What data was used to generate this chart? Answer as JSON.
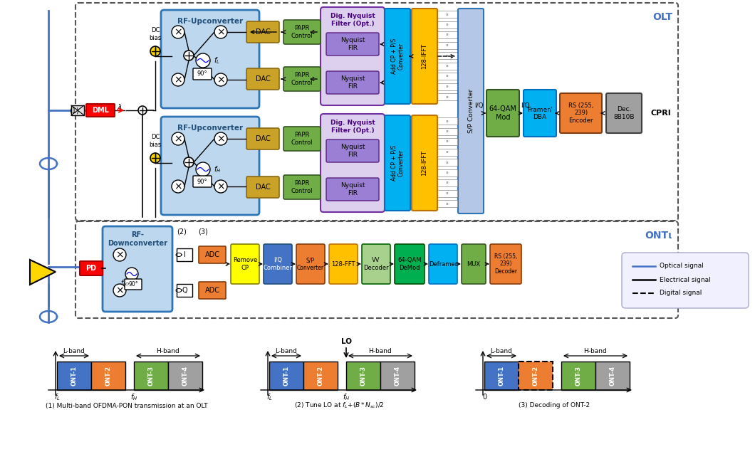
{
  "bg_color": "#ffffff",
  "olt_label": "OLT",
  "ont_label": "ONTι",
  "legend_items": [
    {
      "label": "Optical signal",
      "color": "#4472C4",
      "linestyle": "-"
    },
    {
      "label": "Electrical signal",
      "color": "#000000",
      "linestyle": "-"
    },
    {
      "label": "Digital signal",
      "color": "#000000",
      "linestyle": "--"
    }
  ],
  "spectrum_captions": [
    "(1) Multi-band OFDMA-PON transmission at an OLT",
    "(2) Tune LO at $f_L$+$(B*N_{sc})$/2",
    "(3) Decoding of ONT-2"
  ],
  "ont_colors": [
    "#4472C4",
    "#ED7D31",
    "#70AD47",
    "#A0A0A0"
  ],
  "ont_names": [
    "ONT-1",
    "ONT-2",
    "ONT-3",
    "ONT-4"
  ],
  "dac_color": "#C9A227",
  "papr_color": "#70AD47",
  "nyquist_bg": "#C9B8E8",
  "nyquist_fir_color": "#9B7FD4",
  "addcp_color": "#00B0F0",
  "ifft_color": "#FFC000",
  "sp_color": "#B4C7E7",
  "qam_color": "#70AD47",
  "framer_color": "#00B0F0",
  "rs_enc_color": "#ED7D31",
  "dec8b10b_color": "#A0A0A0",
  "rf_bg": "#BDD7EE",
  "rf_ec": "#2E75B6",
  "remove_cp_color": "#FFFF00",
  "iq_comb_color": "#4472C4",
  "sp_ont_color": "#ED7D31",
  "fft_color": "#FFC000",
  "vv_color": "#A9D18E",
  "qam_demod_color": "#00B050",
  "deframer_color": "#00B0F0",
  "mux_color": "#70AD47",
  "rs_dec_color": "#ED7D31",
  "pd_color": "#FF0000",
  "dml_color": "#FF0000",
  "adc_color": "#ED7D31"
}
